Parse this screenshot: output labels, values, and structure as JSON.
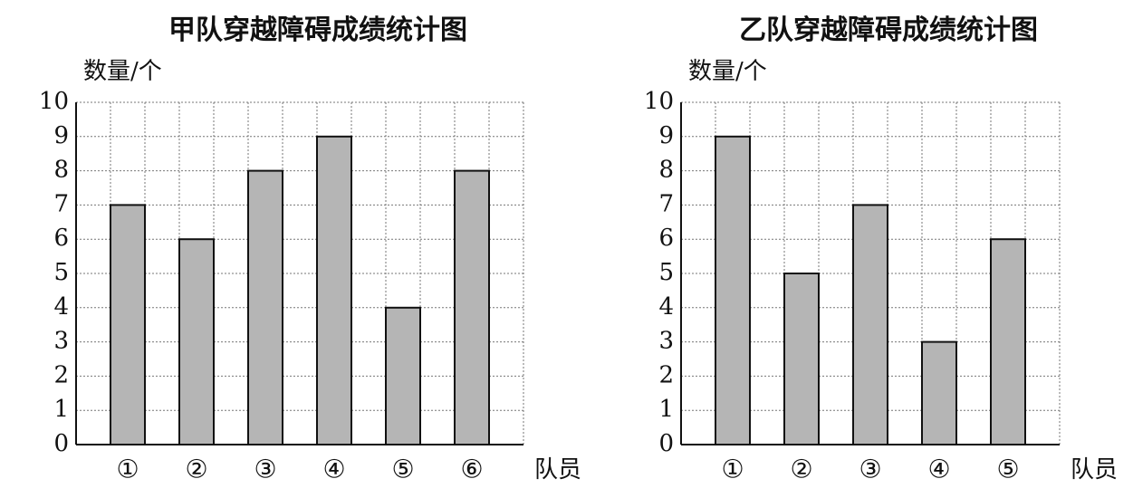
{
  "chart_data": [
    {
      "type": "bar",
      "title": "甲队穿越障碍成绩统计图",
      "y_label": "数量/个",
      "x_label": "队员",
      "categories": [
        "①",
        "②",
        "③",
        "④",
        "⑤",
        "⑥"
      ],
      "values": [
        7,
        6,
        8,
        9,
        4,
        8
      ],
      "color": "#b5b5b5",
      "ylim": [
        0,
        10
      ],
      "yticks": [
        0,
        1,
        2,
        3,
        4,
        5,
        6,
        7,
        8,
        9,
        10
      ],
      "grid": true
    },
    {
      "type": "bar",
      "title": "乙队穿越障碍成绩统计图",
      "y_label": "数量/个",
      "x_label": "队员",
      "categories": [
        "①",
        "②",
        "③",
        "④",
        "⑤"
      ],
      "values": [
        9,
        5,
        7,
        3,
        6
      ],
      "color": "#b5b5b5",
      "ylim": [
        0,
        10
      ],
      "yticks": [
        0,
        1,
        2,
        3,
        4,
        5,
        6,
        7,
        8,
        9,
        10
      ],
      "grid": true
    }
  ]
}
